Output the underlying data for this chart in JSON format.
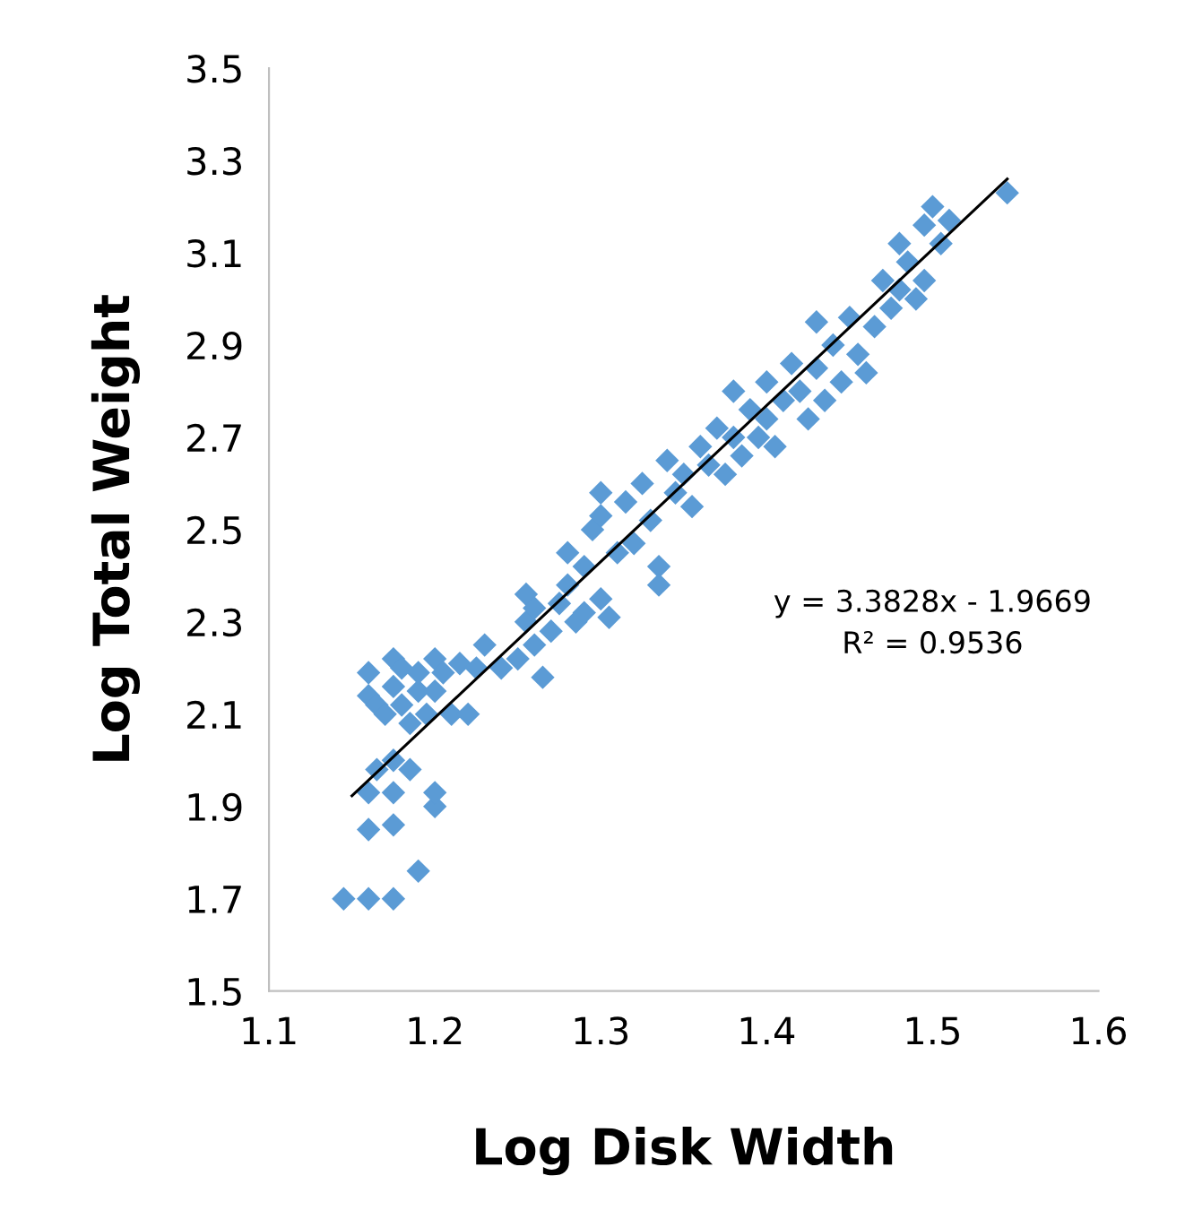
{
  "chart_data": {
    "type": "scatter",
    "xlabel": "Log Disk Width",
    "ylabel": "Log Total Weight",
    "xlim": [
      1.1,
      1.6
    ],
    "xticks": [
      1.1,
      1.2,
      1.3,
      1.4,
      1.5,
      1.6
    ],
    "ylim": [
      1.5,
      3.5
    ],
    "yticks": [
      1.5,
      1.7,
      1.9,
      2.1,
      2.3,
      2.5,
      2.7,
      2.9,
      3.1,
      3.3,
      3.5
    ],
    "grid": false,
    "legend": false,
    "marker": "diamond",
    "annotations": [
      "y = 3.3828x - 1.9669",
      "R² = 0.9536"
    ],
    "series": [
      {
        "color": "#5b9bd5",
        "x": [
          1.145,
          1.16,
          1.175,
          1.19,
          1.16,
          1.175,
          1.16,
          1.175,
          1.185,
          1.165,
          1.175,
          1.2,
          1.2,
          1.16,
          1.16,
          1.165,
          1.17,
          1.175,
          1.175,
          1.18,
          1.18,
          1.185,
          1.19,
          1.19,
          1.195,
          1.2,
          1.2,
          1.205,
          1.21,
          1.215,
          1.22,
          1.225,
          1.23,
          1.24,
          1.25,
          1.255,
          1.255,
          1.26,
          1.26,
          1.265,
          1.27,
          1.275,
          1.28,
          1.28,
          1.285,
          1.29,
          1.29,
          1.295,
          1.3,
          1.3,
          1.3,
          1.305,
          1.31,
          1.315,
          1.32,
          1.325,
          1.33,
          1.335,
          1.335,
          1.34,
          1.345,
          1.35,
          1.355,
          1.36,
          1.365,
          1.37,
          1.375,
          1.38,
          1.38,
          1.385,
          1.39,
          1.395,
          1.4,
          1.4,
          1.405,
          1.41,
          1.415,
          1.42,
          1.425,
          1.43,
          1.43,
          1.435,
          1.44,
          1.445,
          1.45,
          1.455,
          1.46,
          1.465,
          1.47,
          1.475,
          1.48,
          1.48,
          1.485,
          1.49,
          1.495,
          1.495,
          1.5,
          1.505,
          1.51,
          1.545
        ],
        "values": [
          1.7,
          1.7,
          1.7,
          1.76,
          1.85,
          1.86,
          1.93,
          1.93,
          1.98,
          1.98,
          2.0,
          1.9,
          1.93,
          2.19,
          2.14,
          2.12,
          2.1,
          2.16,
          2.22,
          2.2,
          2.12,
          2.08,
          2.15,
          2.19,
          2.1,
          2.15,
          2.22,
          2.19,
          2.1,
          2.21,
          2.1,
          2.2,
          2.25,
          2.2,
          2.22,
          2.36,
          2.3,
          2.25,
          2.33,
          2.18,
          2.28,
          2.34,
          2.45,
          2.38,
          2.3,
          2.32,
          2.42,
          2.5,
          2.58,
          2.53,
          2.35,
          2.31,
          2.45,
          2.56,
          2.47,
          2.6,
          2.52,
          2.42,
          2.38,
          2.65,
          2.58,
          2.62,
          2.55,
          2.68,
          2.64,
          2.72,
          2.62,
          2.8,
          2.7,
          2.66,
          2.76,
          2.7,
          2.82,
          2.74,
          2.68,
          2.78,
          2.86,
          2.8,
          2.74,
          2.95,
          2.85,
          2.78,
          2.9,
          2.82,
          2.96,
          2.88,
          2.84,
          2.94,
          3.04,
          2.98,
          3.12,
          3.02,
          3.08,
          3.0,
          3.16,
          3.04,
          3.2,
          3.12,
          3.17,
          3.23
        ]
      },
      {
        "type": "line",
        "color": "#000000",
        "x": [
          1.15,
          1.545
        ],
        "values": [
          1.923,
          3.26
        ],
        "marker": "none",
        "line_style": "solid"
      }
    ]
  }
}
